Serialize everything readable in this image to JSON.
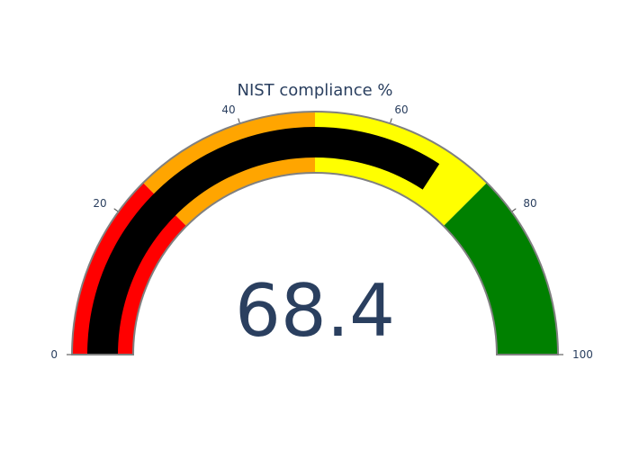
{
  "chart_data": {
    "type": "gauge",
    "title": "NIST compliance %",
    "value": 68.4,
    "value_label": "68.4",
    "range": [
      0,
      100
    ],
    "ticks": [
      {
        "value": 0,
        "label": "0"
      },
      {
        "value": 20,
        "label": "20"
      },
      {
        "value": 40,
        "label": "40"
      },
      {
        "value": 60,
        "label": "60"
      },
      {
        "value": 80,
        "label": "80"
      },
      {
        "value": 100,
        "label": "100"
      }
    ],
    "bands": [
      {
        "from": 0,
        "to": 25,
        "color": "#ff0000"
      },
      {
        "from": 25,
        "to": 50,
        "color": "#ffa500"
      },
      {
        "from": 50,
        "to": 75,
        "color": "#ffff00"
      },
      {
        "from": 75,
        "to": 100,
        "color": "#008000"
      }
    ],
    "bar_color": "#000000",
    "border_color": "#808080",
    "text_color": "#2a3f5f"
  }
}
